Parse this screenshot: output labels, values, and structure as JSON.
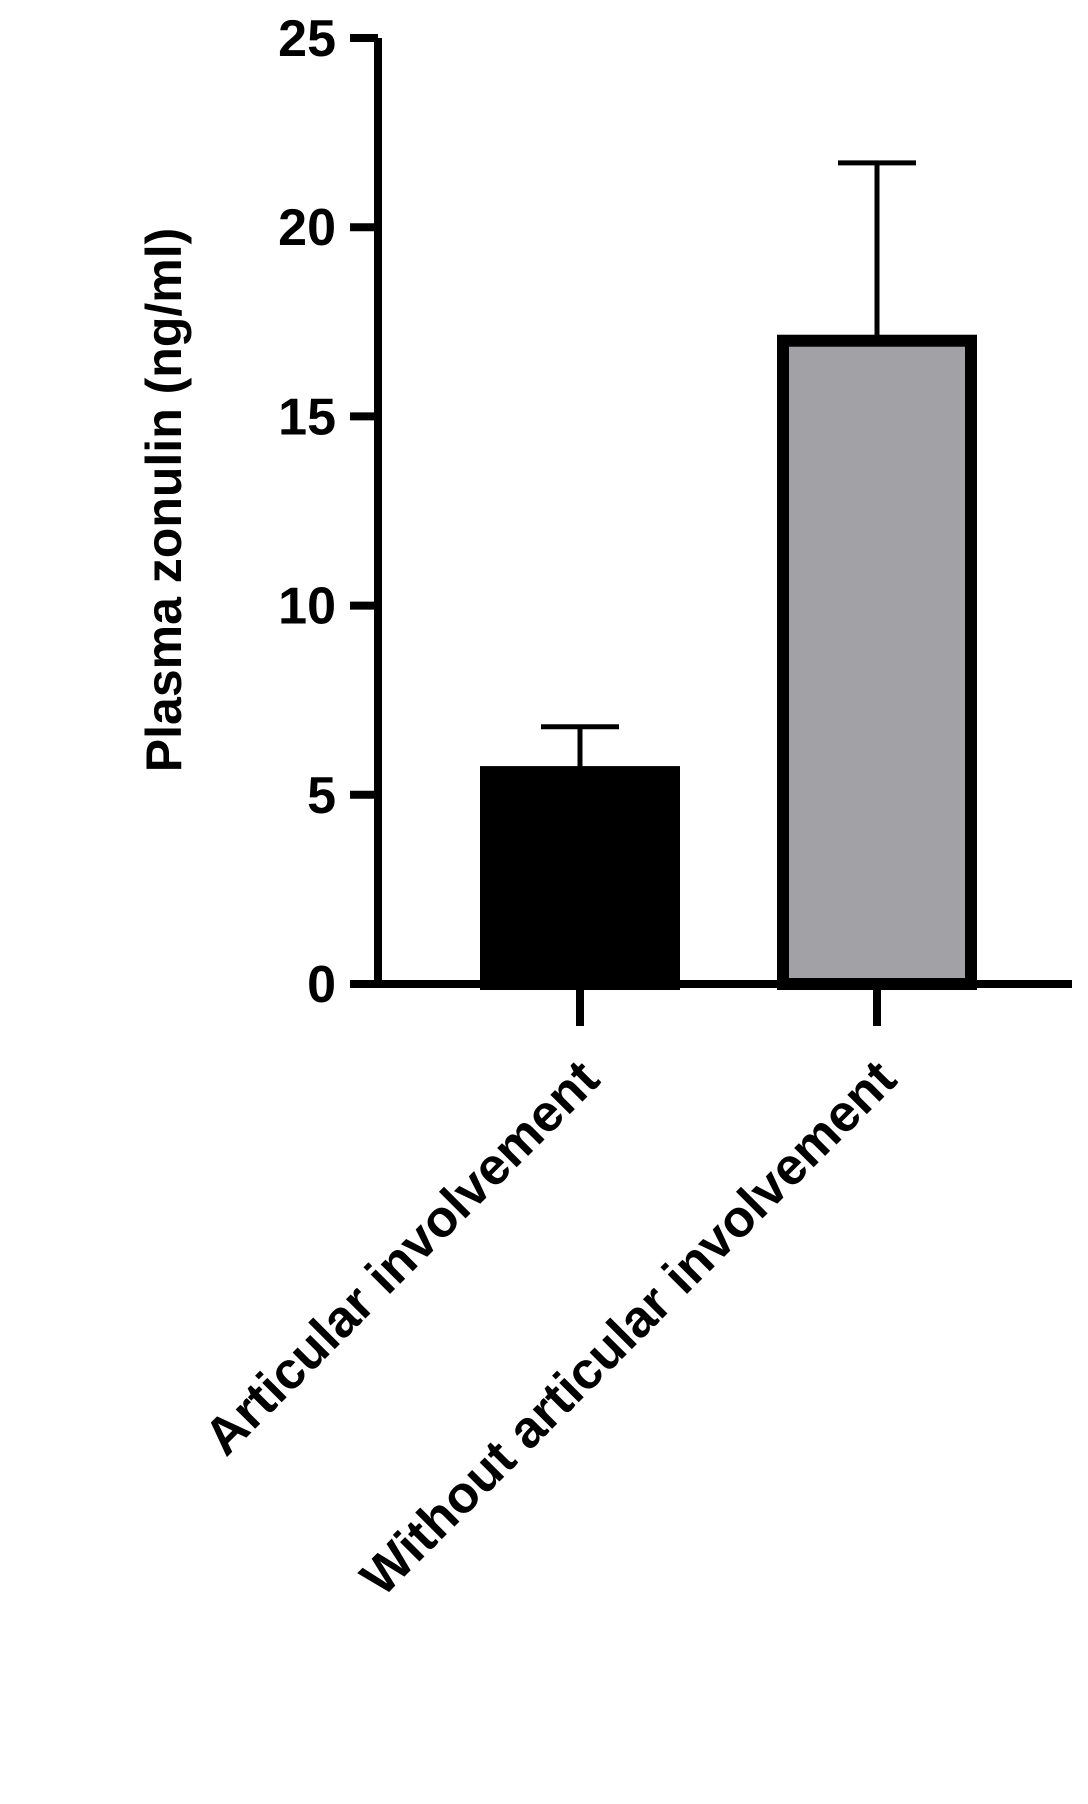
{
  "chart_data": {
    "type": "bar",
    "title": "",
    "xlabel": "",
    "ylabel": "Plasma zonulin (ng/ml)",
    "ylim": [
      0,
      25
    ],
    "yticks": [
      "0",
      "5",
      "10",
      "15",
      "20",
      "25"
    ],
    "grid": false,
    "legend": "none",
    "categories": [
      "Articular involvement",
      "Without articular involvement"
    ],
    "values": [
      5.6,
      17.0
    ],
    "error_upper": [
      6.8,
      21.7
    ],
    "colors": {
      "bar_fills": [
        "#000000",
        "#a2a2a6"
      ],
      "outline": "#000000"
    }
  }
}
